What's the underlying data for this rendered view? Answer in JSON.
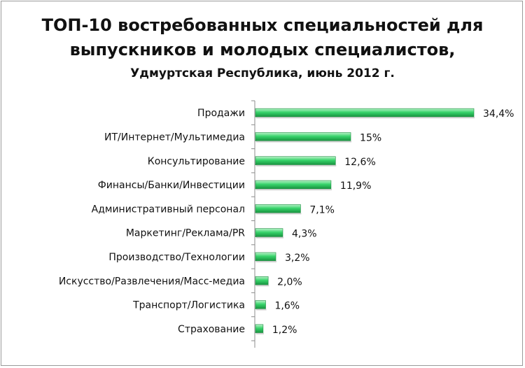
{
  "chart_data": {
    "type": "bar",
    "orientation": "horizontal",
    "title": "ТОП-10 востребованных специальностей для",
    "title_line2": "выпускников и молодых специалистов,",
    "subtitle": "Удмуртская Республика, июнь 2012 г.",
    "categories": [
      "Продажи",
      "ИТ/Интернет/Мультимедиа",
      "Консультирование",
      "Финансы/Банки/Инвестиции",
      "Административный персонал",
      "Маркетинг/Реклама/PR",
      "Производство/Технологии",
      "Искусство/Развлечения/Масс-медиа",
      "Транспорт/Логистика",
      "Страхование"
    ],
    "values": [
      34.4,
      15,
      12.6,
      11.9,
      7.1,
      4.3,
      3.2,
      2.0,
      1.6,
      1.2
    ],
    "value_labels": [
      "34,4%",
      "15%",
      "12,6%",
      "11,9%",
      "7,1%",
      "4,3%",
      "3,2%",
      "2,0%",
      "1,6%",
      "1,2%"
    ],
    "xlim": [
      0,
      34.4
    ],
    "grid": false,
    "legend": "none",
    "bar_color": "#2ecc5f"
  }
}
